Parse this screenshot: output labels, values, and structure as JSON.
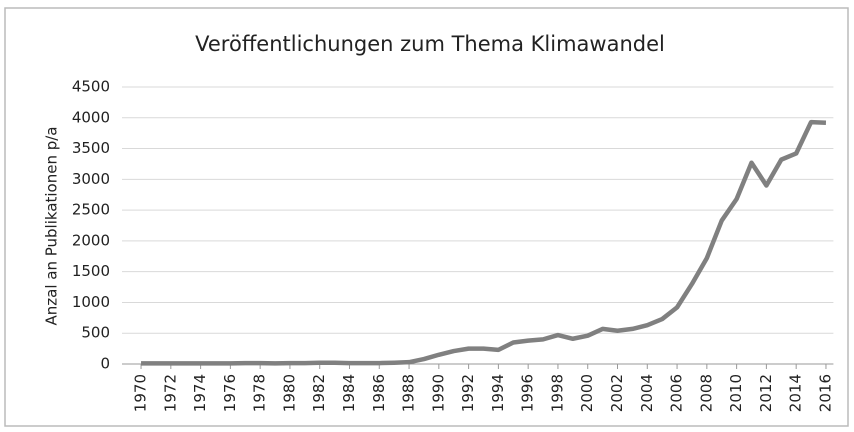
{
  "chart_data": {
    "type": "line",
    "title": "Veröffentlichungen zum Thema Klimawandel",
    "y_label": "Anzal an Publikationen p/a",
    "x": [
      1970,
      1971,
      1972,
      1973,
      1974,
      1975,
      1976,
      1977,
      1978,
      1979,
      1980,
      1981,
      1982,
      1983,
      1984,
      1985,
      1986,
      1987,
      1988,
      1989,
      1990,
      1991,
      1992,
      1993,
      1994,
      1995,
      1996,
      1997,
      1998,
      1999,
      2000,
      2001,
      2002,
      2003,
      2004,
      2005,
      2006,
      2007,
      2008,
      2009,
      2010,
      2011,
      2012,
      2013,
      2014,
      2015,
      2016
    ],
    "series": [
      {
        "color": "#808080",
        "values": [
          10,
          10,
          10,
          10,
          10,
          10,
          10,
          15,
          15,
          10,
          15,
          15,
          20,
          20,
          15,
          15,
          15,
          20,
          30,
          80,
          150,
          210,
          250,
          250,
          230,
          350,
          380,
          400,
          470,
          410,
          460,
          570,
          540,
          570,
          630,
          730,
          920,
          1300,
          1720,
          2330,
          2680,
          3270,
          2900,
          3320,
          3420,
          3930,
          3920
        ]
      }
    ],
    "xlim": [
      1969.5,
      2016.5
    ],
    "xticks": [
      1970,
      1972,
      1974,
      1976,
      1978,
      1980,
      1982,
      1984,
      1986,
      1988,
      1990,
      1992,
      1994,
      1996,
      1998,
      2000,
      2002,
      2004,
      2006,
      2008,
      2010,
      2012,
      2014,
      2016
    ],
    "ylim": [
      0,
      4500
    ],
    "yticks": [
      0,
      500,
      1000,
      1500,
      2000,
      2500,
      3000,
      3500,
      4000,
      4500
    ],
    "grid": true
  }
}
